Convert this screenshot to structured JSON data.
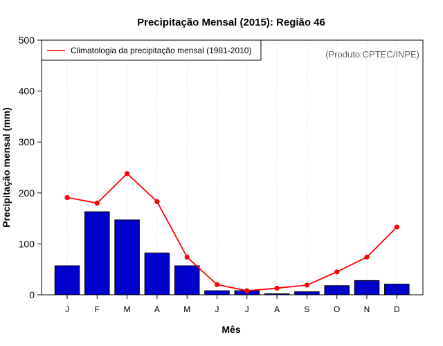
{
  "chart_data": {
    "type": "bar+line",
    "title": "Precipitação Mensal (2015): Região 46",
    "xlabel": "Mês",
    "ylabel": "Precipitação mensal (mm)",
    "ylim": [
      0,
      500
    ],
    "yticks": [
      0,
      100,
      200,
      300,
      400,
      500
    ],
    "categories": [
      "J",
      "F",
      "M",
      "A",
      "M",
      "J",
      "J",
      "A",
      "S",
      "O",
      "N",
      "D"
    ],
    "series": [
      {
        "name": "Precipitação mensal 2015",
        "type": "bar",
        "color": "#0000CD",
        "values": [
          57,
          163,
          147,
          82,
          57,
          8,
          8,
          2,
          6,
          18,
          28,
          21
        ]
      },
      {
        "name": "Climatologia da precipitação mensal (1981-2010)",
        "type": "line",
        "color": "#FF0000",
        "values": [
          191,
          180,
          238,
          183,
          74,
          20,
          8,
          13,
          19,
          45,
          74,
          133
        ]
      }
    ],
    "legend": {
      "label": "Climatologia da precipitação mensal (1981-2010)",
      "placement": "top-left"
    },
    "annotation": "(Produto:CPTEC/INPE)",
    "grid": "vertical-dotted"
  }
}
